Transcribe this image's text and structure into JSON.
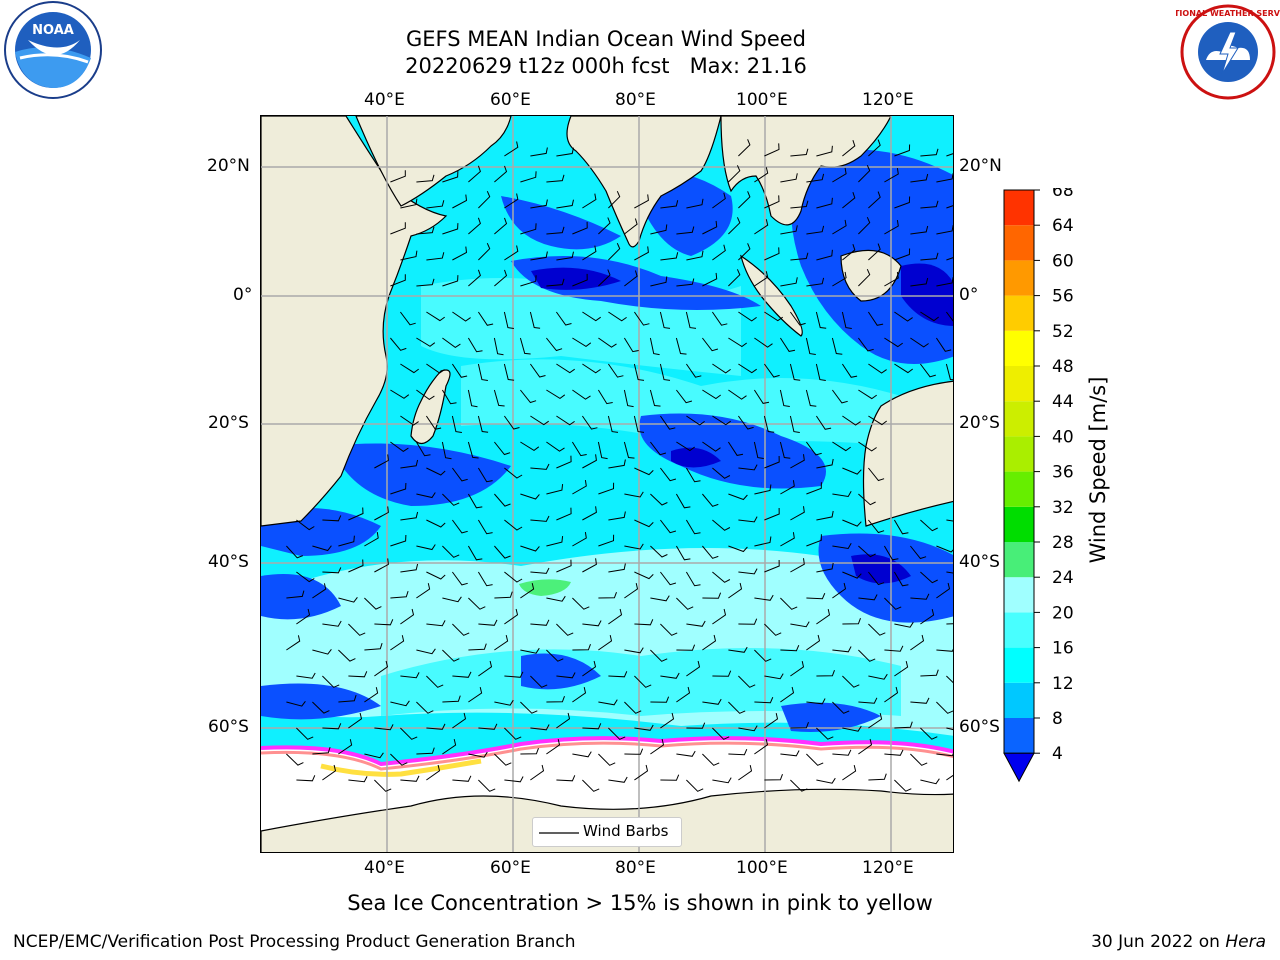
{
  "title": {
    "line1": "GEFS MEAN Indian Ocean Wind Speed",
    "line2": "20220629 t12z 000h fcst   Max: 21.16"
  },
  "map": {
    "region": "Indian Ocean",
    "lon_labels": [
      "40°E",
      "60°E",
      "80°E",
      "100°E",
      "120°E"
    ],
    "lat_labels": [
      "20°N",
      "0°",
      "20°S",
      "40°S",
      "60°S"
    ],
    "legend_label": "Wind Barbs",
    "colors": {
      "land": "#efedda",
      "ocean_deep_blue": "#0a50ff",
      "ocean_dark_blue": "#0000d0",
      "ocean_cyan": "#0ff0ff",
      "ocean_light_cyan": "#a0ffff",
      "ocean_mid_cyan": "#48fbff",
      "green_patch": "#4cf07a",
      "ice": "#ffffff",
      "ice_edge": [
        "#ff30ff",
        "#ff9090",
        "#ffe040"
      ]
    }
  },
  "colorbar": {
    "label": "Wind Speed [m/s]",
    "ticks": [
      "4",
      "8",
      "12",
      "16",
      "20",
      "24",
      "28",
      "32",
      "36",
      "40",
      "44",
      "48",
      "52",
      "56",
      "60",
      "64",
      "68"
    ],
    "colors": [
      "#0a64ff",
      "#00c8ff",
      "#00ffff",
      "#48ffff",
      "#a0ffff",
      "#48ee78",
      "#00dd00",
      "#66ee00",
      "#aaee00",
      "#ccee00",
      "#eeee00",
      "#ffff00",
      "#ffcc00",
      "#ff9900",
      "#ff6600",
      "#ff3300",
      "#ff0000"
    ],
    "extend_color": "#0000ee"
  },
  "subtitle": "Sea Ice Concentration > 15% is shown in pink to yellow",
  "footer": {
    "left": "NCEP/EMC/Verification Post Processing Product Generation Branch",
    "right_prefix": "30 Jun 2022 on ",
    "right_host": "Hera"
  },
  "logos": {
    "left": {
      "name": "noaa-logo",
      "text": "NOAA"
    },
    "right": {
      "name": "nws-logo",
      "text": "NATIONAL WEATHER SERVICE"
    }
  }
}
